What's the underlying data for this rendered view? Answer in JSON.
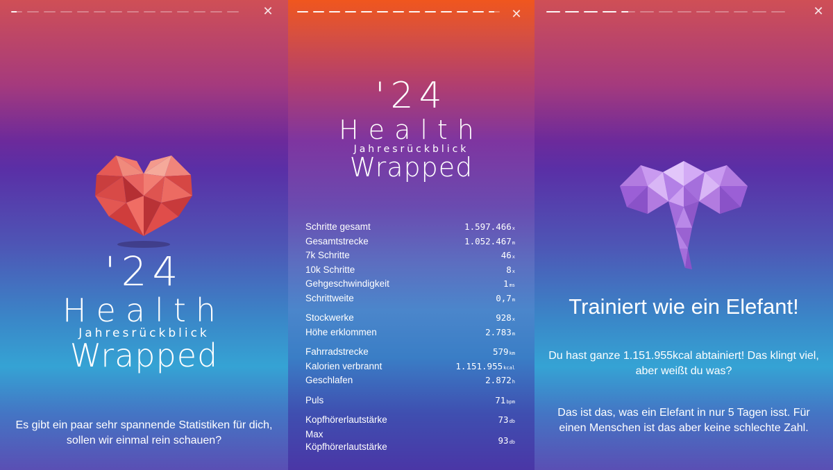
{
  "screens": [
    {
      "close_icon": "✕",
      "logo": {
        "year": "'24",
        "health": "Health",
        "subtitle": "Jahresrückblick",
        "wrapped": "Wrapped"
      },
      "intro_text": "Es gibt ein paar sehr spannende Statistiken für dich, sollen wir einmal rein schauen?",
      "image": "heart-icon"
    },
    {
      "close_icon": "✕",
      "logo": {
        "year": "'24",
        "health": "Health",
        "subtitle": "Jahresrückblick",
        "wrapped": "Wrapped"
      },
      "stats": [
        {
          "label": "Schritte gesamt",
          "value": "1.597.466",
          "unit": "x"
        },
        {
          "label": "Gesamtstrecke",
          "value": "1.052.467",
          "unit": "m"
        },
        {
          "label": "7k Schritte",
          "value": "46",
          "unit": "x"
        },
        {
          "label": "10k Schritte",
          "value": "8",
          "unit": "x"
        },
        {
          "label": "Gehgeschwindigkeit",
          "value": "1",
          "unit": "ms"
        },
        {
          "label": "Schrittweite",
          "value": "0,7",
          "unit": "m"
        },
        {
          "label": "Stockwerke",
          "value": "928",
          "unit": "x"
        },
        {
          "label": "Höhe erklommen",
          "value": "2.783",
          "unit": "m"
        },
        {
          "label": "Fahrradstrecke",
          "value": "579",
          "unit": "km"
        },
        {
          "label": "Kalorien verbrannt",
          "value": "1.151.955",
          "unit": "kcal"
        },
        {
          "label": "Geschlafen",
          "value": "2.872",
          "unit": "h"
        },
        {
          "label": "Puls",
          "value": "71",
          "unit": "bpm"
        },
        {
          "label": "Kopfhörerlautstärke",
          "value": "73",
          "unit": "db"
        },
        {
          "label": "Max Köpfhörerlautstärke",
          "value": "93",
          "unit": "db"
        }
      ]
    },
    {
      "close_icon": "✕",
      "image": "elephant-icon",
      "headline": "Trainiert wie ein Elefant!",
      "paragraph_1": "Du hast ganze 1.151.955kcal abtainiert! Das klingt viel, aber weißt du was?",
      "paragraph_2": "Das ist das, was ein Elefant in nur 5 Tagen isst. Für einen Menschen ist das aber keine schlechte Zahl."
    }
  ]
}
